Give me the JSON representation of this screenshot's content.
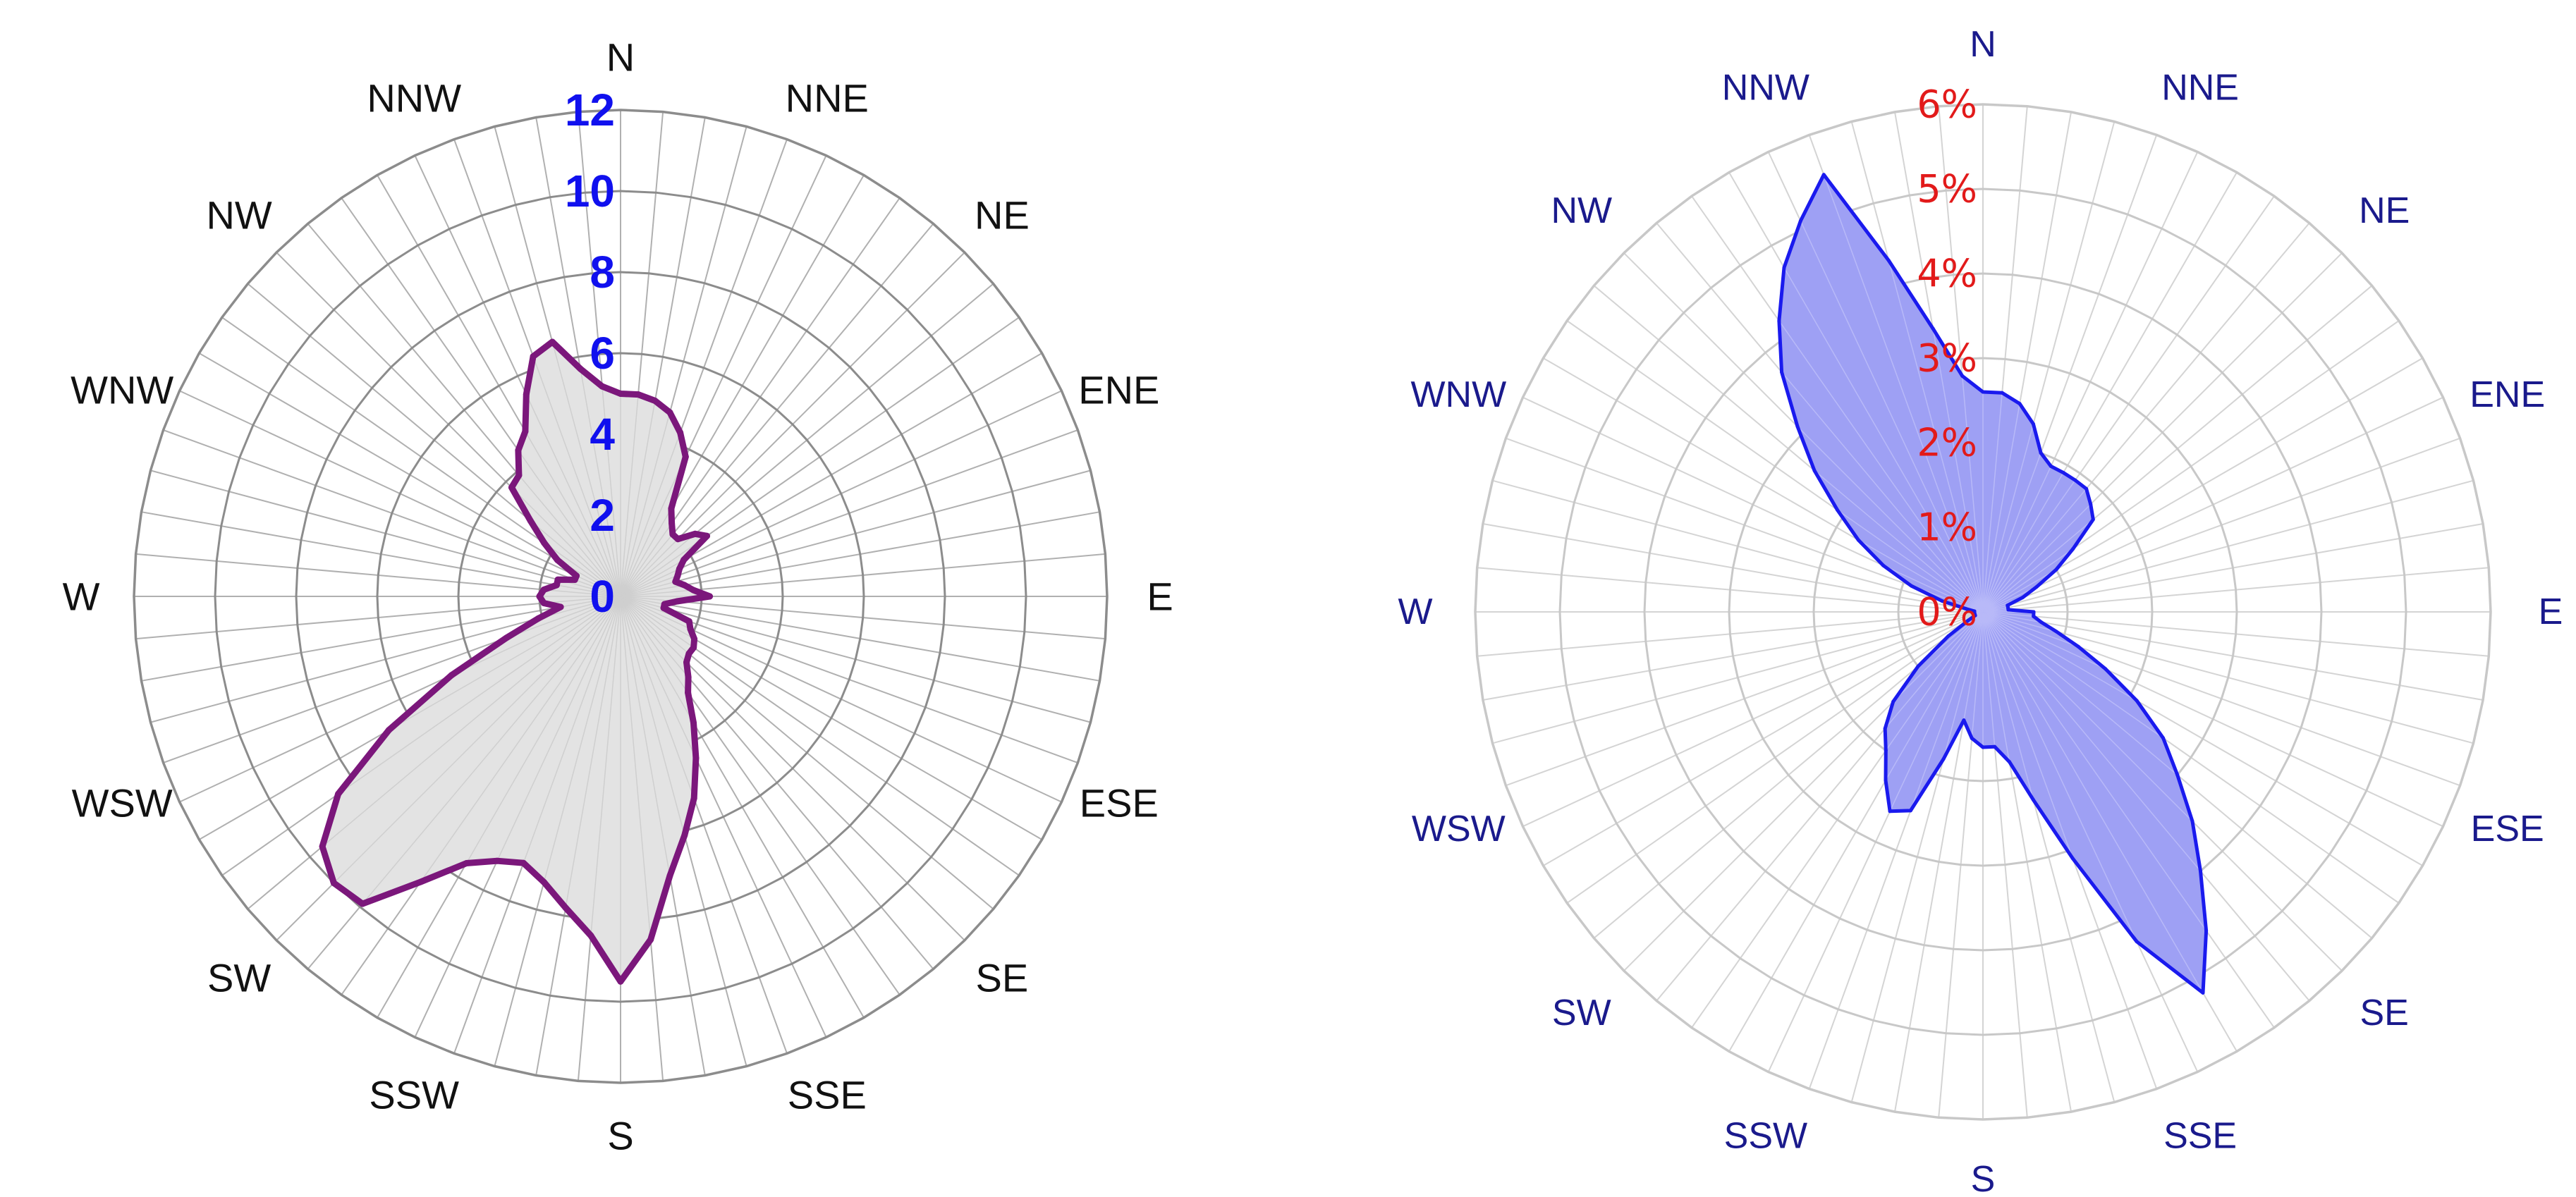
{
  "chart_data": [
    {
      "type": "radar-area",
      "directions": [
        "N",
        "NNE",
        "NE",
        "ENE",
        "E",
        "ESE",
        "SE",
        "SSE",
        "S",
        "SSW",
        "SW",
        "WSW",
        "W",
        "WNW",
        "NW",
        "NNW"
      ],
      "radial_ticks": [
        "0",
        "2",
        "4",
        "6",
        "8",
        "10",
        "12"
      ],
      "rmax": 12,
      "sectors": 72,
      "grid": true,
      "colors": {
        "line": "#7b177b",
        "fill": "#e3e3e3",
        "tick": "#1010ee",
        "grid": "#8c8c8c",
        "spoke": "#b0b0b0"
      },
      "series": [
        {
          "values": [
            5.0,
            5.0,
            4.9,
            4.7,
            4.3,
            3.8,
            2.5,
            2.2,
            2.0,
            2.0,
            2.4,
            2.6,
            1.8,
            1.6,
            1.5,
            1.4,
            1.6,
            1.8,
            2.2,
            1.4,
            1.1,
            1.1,
            1.8,
            1.9,
            2.1,
            2.2,
            2.2,
            2.3,
            2.6,
            2.9,
            3.6,
            4.4,
            5.3,
            6.1,
            7.0,
            8.5,
            9.5,
            8.4,
            7.8,
            7.3,
            7.0,
            7.2,
            7.6,
            8.6,
            9.9,
            10.0,
            9.6,
            8.5,
            6.6,
            4.6,
            3.0,
            2.1,
            1.5,
            1.9,
            2.0,
            1.9,
            1.6,
            1.6,
            1.2,
            1.2,
            1.8,
            2.3,
            2.9,
            3.8,
            3.9,
            4.4,
            4.7,
            5.5,
            6.3,
            6.5,
            5.7,
            5.2
          ]
        }
      ]
    },
    {
      "type": "radar-area",
      "directions": [
        "N",
        "NNE",
        "NE",
        "ENE",
        "E",
        "ESE",
        "SE",
        "SSE",
        "S",
        "SSW",
        "SW",
        "WSW",
        "W",
        "WNW",
        "NW",
        "NNW"
      ],
      "radial_ticks": [
        "0%",
        "1%",
        "2%",
        "3%",
        "4%",
        "5%",
        "6%"
      ],
      "rmax": 6,
      "sectors": 72,
      "grid": true,
      "colors": {
        "line": "#1a1aee",
        "fill": "#9ea0f4",
        "tick": "#e21a1a",
        "grid": "#c8c8c8",
        "spoke": "#d4d4d4"
      },
      "series": [
        {
          "values": [
            2.6,
            2.6,
            2.5,
            2.3,
            2.0,
            1.9,
            1.9,
            1.9,
            1.9,
            1.8,
            1.7,
            1.3,
            1.0,
            0.7,
            0.5,
            0.3,
            0.3,
            0.3,
            0.6,
            0.6,
            0.7,
            0.9,
            1.2,
            1.6,
            2.1,
            2.6,
            3.0,
            3.5,
            4.0,
            4.6,
            5.2,
            4.3,
            3.1,
            2.3,
            1.8,
            1.6,
            1.6,
            1.5,
            1.3,
            1.8,
            2.5,
            2.6,
            2.3,
            2.0,
            1.8,
            1.5,
            1.0,
            0.5,
            0.2,
            0.1,
            0.1,
            0.1,
            0.1,
            0.1,
            0.1,
            0.1,
            0.2,
            0.5,
            0.9,
            1.3,
            1.7,
            2.1,
            2.6,
            3.1,
            3.7,
            4.2,
            4.7,
            5.1,
            5.5,
            4.3,
            3.4,
            2.8
          ]
        }
      ]
    }
  ]
}
